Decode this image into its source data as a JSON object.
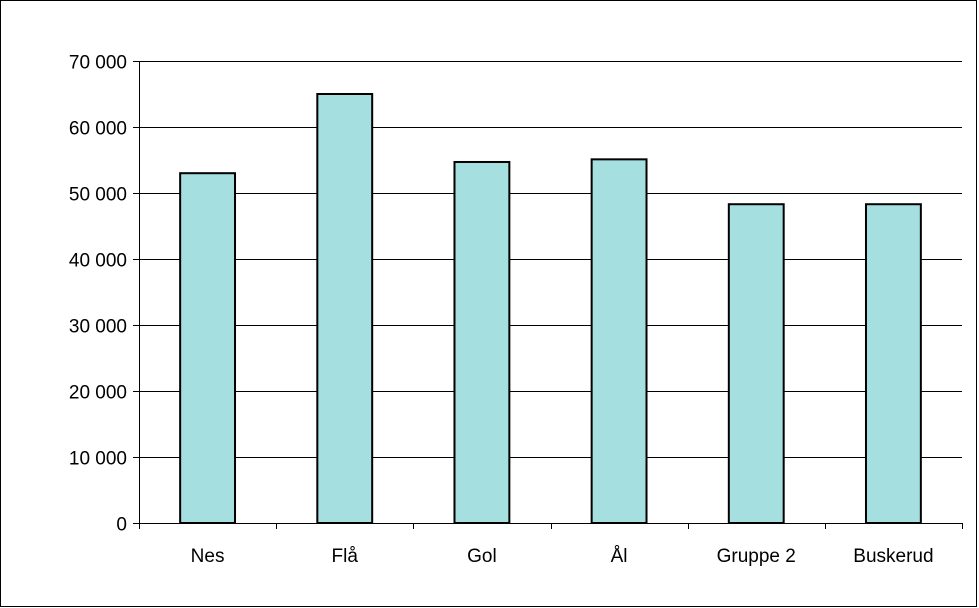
{
  "chart_data": {
    "type": "bar",
    "title": "",
    "xlabel": "",
    "ylabel": "",
    "categories": [
      "Nes",
      "Flå",
      "Gol",
      "Ål",
      "Gruppe 2",
      "Buskerud"
    ],
    "values": [
      53000,
      65000,
      54700,
      55100,
      48300,
      48300
    ],
    "ylim": [
      0,
      70000
    ],
    "yticks": [
      0,
      10000,
      20000,
      30000,
      40000,
      50000,
      60000,
      70000
    ],
    "ytick_labels": [
      "0",
      "10 000",
      "20 000",
      "30 000",
      "40 000",
      "50 000",
      "60 000",
      "70 000"
    ],
    "grid": true,
    "legend": "none",
    "colors": {
      "bar_fill": "#a5dfdf",
      "bar_stroke": "#000000",
      "grid": "#000000",
      "frame": "#000000",
      "background": "#ffffff"
    }
  }
}
